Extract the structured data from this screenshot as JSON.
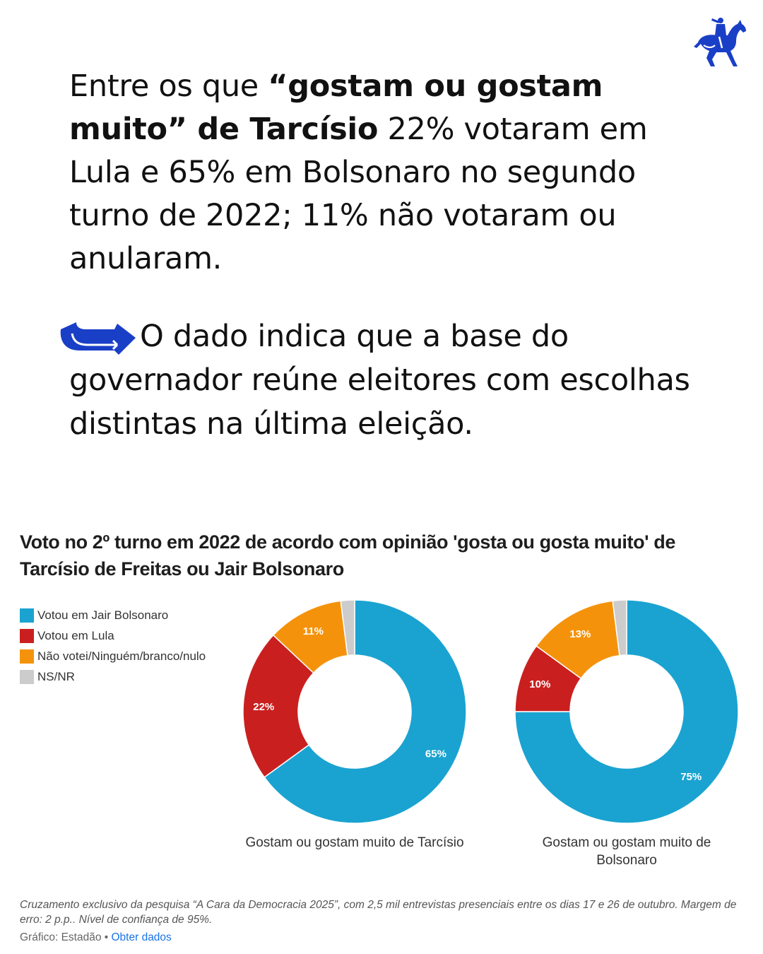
{
  "headline": {
    "part1": "Entre os que ",
    "bold": "“gostam ou gostam muito” de Tarcísio",
    "part2": " 22% votaram em Lula e 65% em Bolsonaro no segundo turno de 2022; 11% não votaram ou anularam."
  },
  "note": "O dado indica que a base do governador reúne eleitores com escolhas distintas na última eleição.",
  "icons": {
    "logo": "horse-rider-logo",
    "arrow": "curved-arrow-icon"
  },
  "colors": {
    "bolsonaro": "#1aa3d1",
    "lula": "#c9201f",
    "nao_votei": "#f4930b",
    "nsnr": "#cccccc",
    "link": "#1a73e8",
    "brand": "#1a3fc7"
  },
  "chart_data": {
    "type": "pie",
    "donut": true,
    "title": "Voto no 2º turno em 2022 de acordo com opinião 'gosta ou gosta muito' de Tarcísio de Freitas ou Jair Bolsonaro",
    "legend_position": "top-left",
    "legend": [
      "Votou em Jair Bolsonaro",
      "Votou em Lula",
      "Não votei/Ninguém/branco/nulo",
      "NS/NR"
    ],
    "charts": [
      {
        "caption": "Gostam ou gostam muito de Tarcísio",
        "slices": [
          {
            "name": "Votou em Jair Bolsonaro",
            "value": 65,
            "label": "65%"
          },
          {
            "name": "Votou em Lula",
            "value": 22,
            "label": "22%"
          },
          {
            "name": "Não votei/Ninguém/branco/nulo",
            "value": 11,
            "label": "11%"
          },
          {
            "name": "NS/NR",
            "value": 2,
            "label": ""
          }
        ]
      },
      {
        "caption": "Gostam ou gostam muito de Bolsonaro",
        "slices": [
          {
            "name": "Votou em Jair Bolsonaro",
            "value": 75,
            "label": "75%"
          },
          {
            "name": "Votou em Lula",
            "value": 10,
            "label": "10%"
          },
          {
            "name": "Não votei/Ninguém/branco/nulo",
            "value": 13,
            "label": "13%"
          },
          {
            "name": "NS/NR",
            "value": 2,
            "label": ""
          }
        ]
      }
    ]
  },
  "source": "Cruzamento exclusivo da pesquisa “A Cara da Democracia 2025”, com 2,5 mil entrevistas presenciais entre os dias 17 e 26 de outubro. Margem de erro: 2 p.p.. Nível de confiança de 95%.",
  "credit": {
    "label": "Gráfico: Estadão",
    "separator": " • ",
    "link": "Obter dados"
  }
}
